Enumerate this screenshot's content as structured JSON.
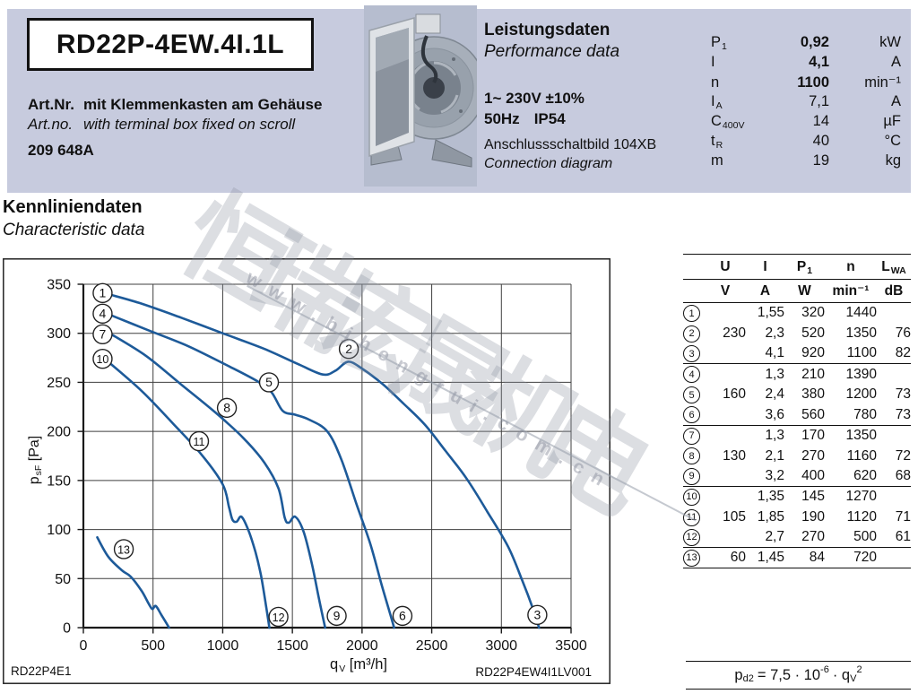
{
  "colors": {
    "band": "#c7cbde",
    "curve": "#1d5a99",
    "grid": "#3f3f3f",
    "axis": "#1a1a1a",
    "text": "#111111"
  },
  "header": {
    "model": "RD22P-4EW.4I.1L",
    "art_label_de": "Art.Nr.",
    "art_text_de": "mit Klemmenkasten am Gehäuse",
    "art_label_en": "Art.no.",
    "art_text_en": "with terminal box fixed on scroll",
    "art_number": "209 648A",
    "perf_title_de": "Leistungsdaten",
    "perf_title_en": "Performance data",
    "supply": "1~ 230V ±10%",
    "freq": "50Hz",
    "protection": "IP54",
    "diagram_de": "Anschlussschaltbild 104XB",
    "diagram_en": "Connection diagram",
    "specs": [
      {
        "base": "P",
        "sub": "1",
        "value": "0,92",
        "unit": "kW",
        "bold": true
      },
      {
        "base": "I",
        "sub": "",
        "value": "4,1",
        "unit": "A",
        "bold": true
      },
      {
        "base": "n",
        "sub": "",
        "value": "1100",
        "unit": "min⁻¹",
        "bold": true
      },
      {
        "base": "I",
        "sub": "A",
        "value": "7,1",
        "unit": "A",
        "bold": false
      },
      {
        "base": "C",
        "sub": "400V",
        "value": "14",
        "unit": "µF",
        "bold": false
      },
      {
        "base": "t",
        "sub": "R",
        "value": "40",
        "unit": "°C",
        "bold": false
      },
      {
        "base": "m",
        "sub": "",
        "value": "19",
        "unit": "kg",
        "bold": false
      }
    ]
  },
  "section": {
    "title_de": "Kennliniendaten",
    "title_en": "Characteristic data"
  },
  "chart": {
    "code_left": "RD22P4E1",
    "code_right": "RD22P4EW4I1LV001"
  },
  "chart_data": {
    "type": "line",
    "title": "Kennliniendaten / Characteristic data",
    "xlabel": "qV [m³/h]",
    "ylabel": "psF [Pa]",
    "xlabel_parts": {
      "base": "q",
      "sub": "V",
      "rest": " [m³/h]"
    },
    "ylabel_parts": {
      "base": "p",
      "sub": "sF",
      "rest": " [Pa]"
    },
    "xlim": [
      0,
      3500
    ],
    "ylim": [
      0,
      350
    ],
    "x_ticks": [
      0,
      500,
      1000,
      1500,
      2000,
      2500,
      3000,
      3500
    ],
    "y_ticks": [
      0,
      50,
      100,
      150,
      200,
      250,
      300,
      350
    ],
    "grid": true,
    "legend": "none",
    "series": [
      {
        "name": "230 V curve (points 1-2-3)",
        "points": [
          [
            150,
            341
          ],
          [
            400,
            331
          ],
          [
            700,
            316
          ],
          [
            1000,
            300
          ],
          [
            1300,
            284
          ],
          [
            1550,
            268
          ],
          [
            1720,
            258
          ],
          [
            1810,
            262
          ],
          [
            1900,
            271
          ],
          [
            2000,
            264
          ],
          [
            2150,
            248
          ],
          [
            2300,
            228
          ],
          [
            2450,
            207
          ],
          [
            2600,
            180
          ],
          [
            2750,
            152
          ],
          [
            2900,
            118
          ],
          [
            3050,
            82
          ],
          [
            3150,
            48
          ],
          [
            3230,
            18
          ],
          [
            3270,
            0
          ]
        ]
      },
      {
        "name": "160 V curve (points 4-5-6)",
        "points": [
          [
            170,
            320
          ],
          [
            450,
            304
          ],
          [
            750,
            287
          ],
          [
            1050,
            266
          ],
          [
            1250,
            251
          ],
          [
            1350,
            240
          ],
          [
            1430,
            221
          ],
          [
            1520,
            217
          ],
          [
            1620,
            212
          ],
          [
            1750,
            200
          ],
          [
            1850,
            172
          ],
          [
            1960,
            126
          ],
          [
            2060,
            85
          ],
          [
            2140,
            44
          ],
          [
            2200,
            15
          ],
          [
            2230,
            0
          ]
        ]
      },
      {
        "name": "130 V curve (points 7-8-9)",
        "points": [
          [
            200,
            299
          ],
          [
            450,
            277
          ],
          [
            700,
            248
          ],
          [
            950,
            219
          ],
          [
            1150,
            193
          ],
          [
            1300,
            168
          ],
          [
            1400,
            142
          ],
          [
            1445,
            112
          ],
          [
            1475,
            107
          ],
          [
            1520,
            113
          ],
          [
            1580,
            98
          ],
          [
            1640,
            65
          ],
          [
            1690,
            30
          ],
          [
            1735,
            0
          ]
        ]
      },
      {
        "name": "105 V curve (points 10-11-12)",
        "points": [
          [
            170,
            272
          ],
          [
            420,
            241
          ],
          [
            650,
            207
          ],
          [
            850,
            176
          ],
          [
            1000,
            146
          ],
          [
            1045,
            123
          ],
          [
            1070,
            110
          ],
          [
            1100,
            108
          ],
          [
            1135,
            113
          ],
          [
            1185,
            99
          ],
          [
            1235,
            77
          ],
          [
            1275,
            53
          ],
          [
            1310,
            23
          ],
          [
            1335,
            0
          ]
        ]
      },
      {
        "name": "60 V curve (point 13)",
        "points": [
          [
            100,
            92
          ],
          [
            180,
            72
          ],
          [
            280,
            58
          ],
          [
            340,
            52
          ],
          [
            420,
            37
          ],
          [
            470,
            24
          ],
          [
            495,
            19
          ],
          [
            520,
            22
          ],
          [
            560,
            13
          ],
          [
            615,
            0
          ]
        ]
      }
    ],
    "point_labels": [
      {
        "n": "1",
        "x": 138,
        "y": 341
      },
      {
        "n": "4",
        "x": 138,
        "y": 320
      },
      {
        "n": "7",
        "x": 138,
        "y": 299
      },
      {
        "n": "10",
        "x": 138,
        "y": 274
      },
      {
        "n": "13",
        "x": 290,
        "y": 80
      },
      {
        "n": "2",
        "x": 1905,
        "y": 284
      },
      {
        "n": "5",
        "x": 1332,
        "y": 250
      },
      {
        "n": "8",
        "x": 1030,
        "y": 224
      },
      {
        "n": "11",
        "x": 830,
        "y": 190
      },
      {
        "n": "12",
        "x": 1400,
        "y": 11
      },
      {
        "n": "9",
        "x": 1818,
        "y": 12
      },
      {
        "n": "6",
        "x": 2290,
        "y": 12
      },
      {
        "n": "3",
        "x": 3258,
        "y": 13
      }
    ]
  },
  "table": {
    "columns": [
      {
        "base": "U",
        "sub": ""
      },
      {
        "base": "I",
        "sub": ""
      },
      {
        "base": "P",
        "sub": "1"
      },
      {
        "base": "n",
        "sub": ""
      },
      {
        "base": "L",
        "sub": "WA"
      }
    ],
    "units": [
      "V",
      "A",
      "W",
      "min⁻¹",
      "dB"
    ],
    "rows": [
      {
        "n": "1",
        "u": "",
        "i": "1,55",
        "p": "320",
        "rpm": "1440",
        "lwa": ""
      },
      {
        "n": "2",
        "u": "230",
        "i": "2,3",
        "p": "520",
        "rpm": "1350",
        "lwa": "76"
      },
      {
        "n": "3",
        "u": "",
        "i": "4,1",
        "p": "920",
        "rpm": "1100",
        "lwa": "82"
      },
      {
        "n": "4",
        "u": "",
        "i": "1,3",
        "p": "210",
        "rpm": "1390",
        "lwa": ""
      },
      {
        "n": "5",
        "u": "160",
        "i": "2,4",
        "p": "380",
        "rpm": "1200",
        "lwa": "73"
      },
      {
        "n": "6",
        "u": "",
        "i": "3,6",
        "p": "560",
        "rpm": "780",
        "lwa": "73"
      },
      {
        "n": "7",
        "u": "",
        "i": "1,3",
        "p": "170",
        "rpm": "1350",
        "lwa": ""
      },
      {
        "n": "8",
        "u": "130",
        "i": "2,1",
        "p": "270",
        "rpm": "1160",
        "lwa": "72"
      },
      {
        "n": "9",
        "u": "",
        "i": "3,2",
        "p": "400",
        "rpm": "620",
        "lwa": "68"
      },
      {
        "n": "10",
        "u": "",
        "i": "1,35",
        "p": "145",
        "rpm": "1270",
        "lwa": ""
      },
      {
        "n": "11",
        "u": "105",
        "i": "1,85",
        "p": "190",
        "rpm": "1120",
        "lwa": "71"
      },
      {
        "n": "12",
        "u": "",
        "i": "2,7",
        "p": "270",
        "rpm": "500",
        "lwa": "61"
      },
      {
        "n": "13",
        "u": "60",
        "i": "1,45",
        "p": "84",
        "rpm": "720",
        "lwa": ""
      }
    ],
    "group_end_after": [
      "3",
      "6",
      "9",
      "12",
      "13"
    ]
  },
  "formula": {
    "lhs_base": "p",
    "lhs_sub": "d2",
    "body": "= 7,5 · 10",
    "body_sup": "-6",
    "tail": "· q",
    "tail_sub": "V",
    "tail_sup": "2"
  },
  "watermark": {
    "text_cn": "恒瑞宏晟机电",
    "text_url": "www.bjhengrui.com.cn"
  }
}
